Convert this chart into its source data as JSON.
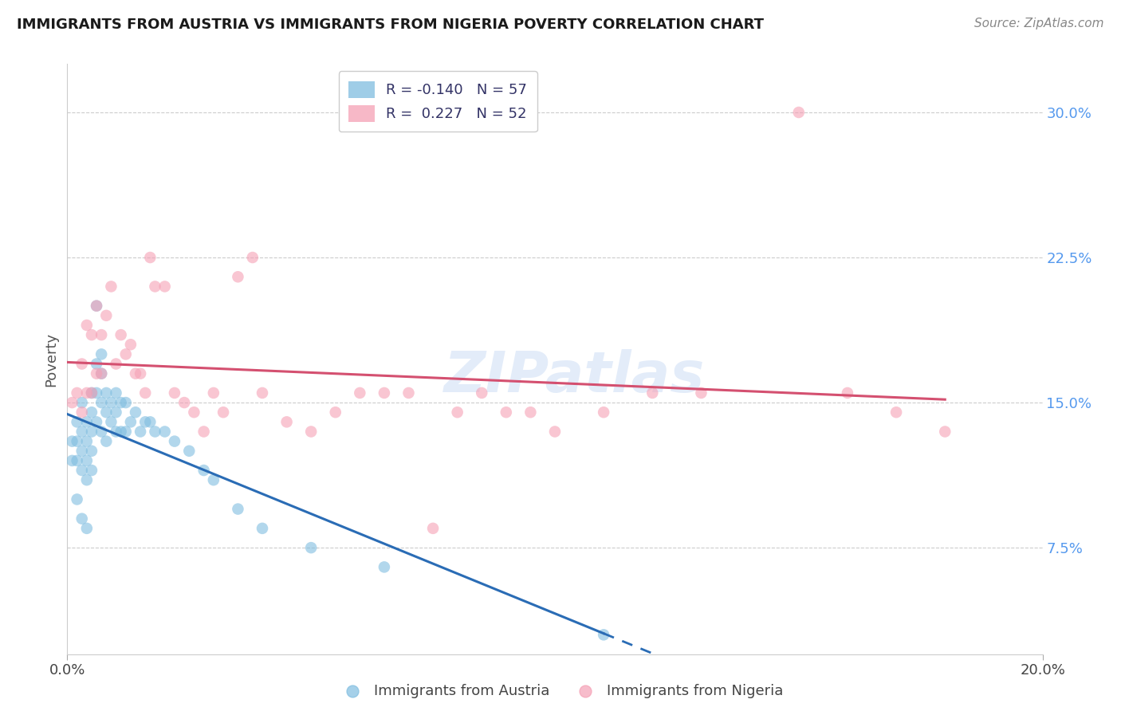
{
  "title": "IMMIGRANTS FROM AUSTRIA VS IMMIGRANTS FROM NIGERIA POVERTY CORRELATION CHART",
  "source": "Source: ZipAtlas.com",
  "ylabel": "Poverty",
  "y_ticks": [
    0.075,
    0.15,
    0.225,
    0.3
  ],
  "y_tick_labels": [
    "7.5%",
    "15.0%",
    "22.5%",
    "30.0%"
  ],
  "x_range": [
    0.0,
    0.2
  ],
  "y_range": [
    0.02,
    0.325
  ],
  "austria_color": "#7fbde0",
  "nigeria_color": "#f5a0b5",
  "austria_R": -0.14,
  "austria_N": 57,
  "nigeria_R": 0.227,
  "nigeria_N": 52,
  "legend_label_austria": "Immigrants from Austria",
  "legend_label_nigeria": "Immigrants from Nigeria",
  "austria_x": [
    0.001,
    0.001,
    0.002,
    0.002,
    0.002,
    0.002,
    0.003,
    0.003,
    0.003,
    0.003,
    0.003,
    0.004,
    0.004,
    0.004,
    0.004,
    0.004,
    0.005,
    0.005,
    0.005,
    0.005,
    0.005,
    0.006,
    0.006,
    0.006,
    0.006,
    0.007,
    0.007,
    0.007,
    0.007,
    0.008,
    0.008,
    0.008,
    0.009,
    0.009,
    0.01,
    0.01,
    0.01,
    0.011,
    0.011,
    0.012,
    0.012,
    0.013,
    0.014,
    0.015,
    0.016,
    0.017,
    0.018,
    0.02,
    0.022,
    0.025,
    0.028,
    0.03,
    0.035,
    0.04,
    0.05,
    0.065,
    0.11
  ],
  "austria_y": [
    0.13,
    0.12,
    0.14,
    0.13,
    0.12,
    0.1,
    0.15,
    0.135,
    0.125,
    0.115,
    0.09,
    0.14,
    0.13,
    0.12,
    0.11,
    0.085,
    0.155,
    0.145,
    0.135,
    0.125,
    0.115,
    0.2,
    0.17,
    0.155,
    0.14,
    0.175,
    0.165,
    0.15,
    0.135,
    0.155,
    0.145,
    0.13,
    0.15,
    0.14,
    0.155,
    0.145,
    0.135,
    0.15,
    0.135,
    0.15,
    0.135,
    0.14,
    0.145,
    0.135,
    0.14,
    0.14,
    0.135,
    0.135,
    0.13,
    0.125,
    0.115,
    0.11,
    0.095,
    0.085,
    0.075,
    0.065,
    0.03
  ],
  "nigeria_x": [
    0.001,
    0.002,
    0.003,
    0.003,
    0.004,
    0.004,
    0.005,
    0.005,
    0.006,
    0.006,
    0.007,
    0.007,
    0.008,
    0.009,
    0.01,
    0.011,
    0.012,
    0.013,
    0.014,
    0.015,
    0.016,
    0.017,
    0.018,
    0.02,
    0.022,
    0.024,
    0.026,
    0.028,
    0.03,
    0.032,
    0.035,
    0.038,
    0.04,
    0.045,
    0.05,
    0.055,
    0.06,
    0.065,
    0.07,
    0.075,
    0.08,
    0.085,
    0.09,
    0.095,
    0.1,
    0.11,
    0.12,
    0.13,
    0.15,
    0.16,
    0.17,
    0.18
  ],
  "nigeria_y": [
    0.15,
    0.155,
    0.145,
    0.17,
    0.155,
    0.19,
    0.185,
    0.155,
    0.2,
    0.165,
    0.185,
    0.165,
    0.195,
    0.21,
    0.17,
    0.185,
    0.175,
    0.18,
    0.165,
    0.165,
    0.155,
    0.225,
    0.21,
    0.21,
    0.155,
    0.15,
    0.145,
    0.135,
    0.155,
    0.145,
    0.215,
    0.225,
    0.155,
    0.14,
    0.135,
    0.145,
    0.155,
    0.155,
    0.155,
    0.085,
    0.145,
    0.155,
    0.145,
    0.145,
    0.135,
    0.145,
    0.155,
    0.155,
    0.3,
    0.155,
    0.145,
    0.135
  ],
  "watermark": "ZIPatlas",
  "background_color": "#ffffff",
  "grid_color": "#cccccc"
}
